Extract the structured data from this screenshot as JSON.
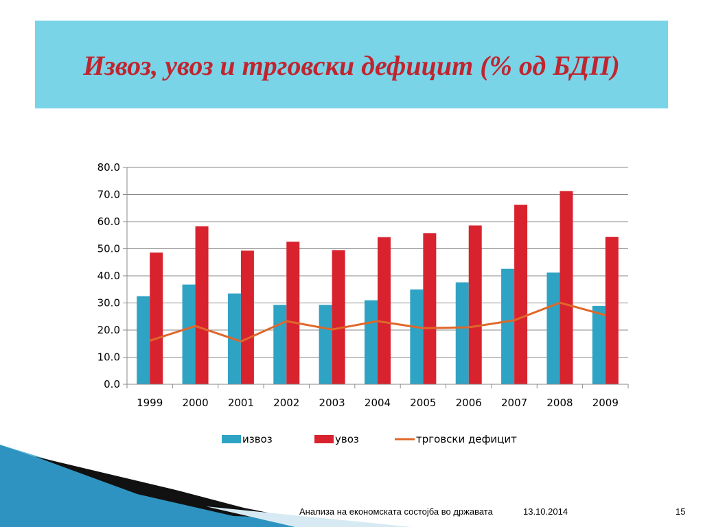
{
  "slide": {
    "title": "Извоз, увоз и трговски дефицит (% од БДП)",
    "footer_text": "Анализа на економската состојба во државата",
    "footer_date": "13.10.2014",
    "page_number": "15"
  },
  "colors": {
    "title_bar": "#79d4e8",
    "title_text": "#c0252f",
    "export": "#2fa3c3",
    "import": "#d8232e",
    "deficit": "#e0672a"
  },
  "chart_data": {
    "type": "bar",
    "categories": [
      "1999",
      "2000",
      "2001",
      "2002",
      "2003",
      "2004",
      "2005",
      "2006",
      "2007",
      "2008",
      "2009"
    ],
    "series": [
      {
        "name": "извоз",
        "type": "bar",
        "values": [
          32.5,
          36.8,
          33.5,
          29.3,
          29.3,
          31.0,
          35.0,
          37.6,
          42.6,
          41.2,
          28.9
        ]
      },
      {
        "name": "увоз",
        "type": "bar",
        "values": [
          48.6,
          58.3,
          49.3,
          52.6,
          49.5,
          54.3,
          55.7,
          58.6,
          66.2,
          71.3,
          54.4
        ]
      },
      {
        "name": "трговски дефицит",
        "type": "line",
        "values": [
          16.1,
          21.5,
          15.8,
          23.3,
          20.2,
          23.3,
          20.7,
          21.0,
          23.6,
          30.1,
          25.5
        ]
      }
    ],
    "ylim": [
      0,
      80
    ],
    "yticks": [
      "0.0",
      "10.0",
      "20.0",
      "30.0",
      "40.0",
      "50.0",
      "60.0",
      "70.0",
      "80.0"
    ],
    "grid": true,
    "legend_position": "bottom"
  }
}
